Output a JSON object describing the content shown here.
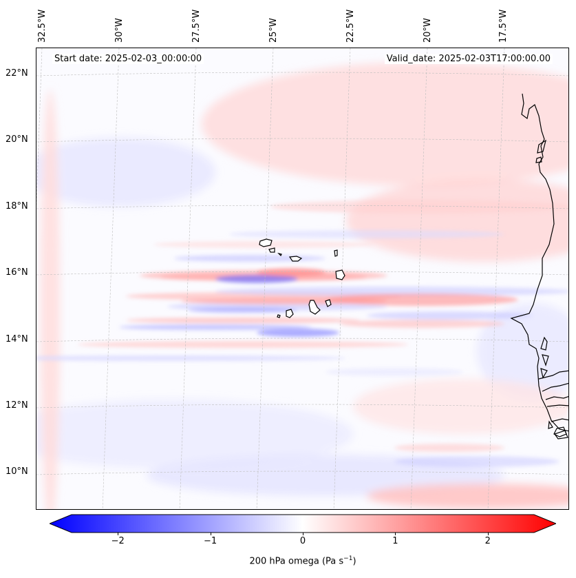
{
  "map": {
    "header_left": "Start date: 2025-02-03_00:00:00",
    "header_right": "Valid_date: 2025-02-03T17:00:00.00",
    "lon_labels": [
      "32.5°W",
      "30°W",
      "27.5°W",
      "25°W",
      "22.5°W",
      "20°W",
      "17.5°W"
    ],
    "lat_labels": [
      "22°N",
      "20°N",
      "18°N",
      "16°N",
      "14°N",
      "12°N",
      "10°N"
    ],
    "field": "200 hPa omega",
    "colormap": "bwr",
    "colors": {
      "negative": "#0000ff",
      "positive": "#ff0000",
      "neutral": "#ffffff",
      "coast": "#000000"
    }
  },
  "colorbar": {
    "label": "200 hPa omega (Pa s",
    "label_sup": "−1",
    "label_close": ")",
    "ticks": [
      "−2",
      "−1",
      "0",
      "1",
      "2"
    ],
    "range": [
      -2.5,
      2.5
    ]
  }
}
